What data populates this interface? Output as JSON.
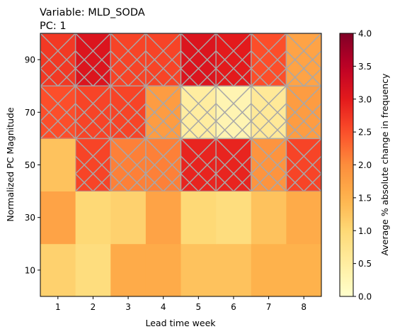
{
  "chart_data": {
    "type": "heatmap",
    "title_lines": [
      "Variable: MLD_SODA",
      "PC: 1"
    ],
    "xlabel": "Lead time week",
    "ylabel": "Normalized PC Magnitude",
    "x_categories": [
      "1",
      "2",
      "3",
      "4",
      "5",
      "6",
      "7",
      "8"
    ],
    "y_categories": [
      "10",
      "30",
      "50",
      "70",
      "90"
    ],
    "colorbar": {
      "label": "Average % absolute change in frequency",
      "colormap": "YlOrRd",
      "min": 0.0,
      "max": 4.0,
      "ticks": [
        "0.0",
        "0.5",
        "1.0",
        "1.5",
        "2.0",
        "2.5",
        "3.0",
        "3.5",
        "4.0"
      ]
    },
    "rows": [
      {
        "y": "10",
        "values": [
          1.1,
          0.9,
          1.6,
          1.6,
          1.3,
          1.3,
          1.5,
          1.5
        ],
        "hatched": [
          false,
          false,
          false,
          false,
          false,
          false,
          false,
          false
        ]
      },
      {
        "y": "30",
        "values": [
          1.7,
          1.0,
          1.1,
          1.7,
          1.0,
          0.9,
          1.3,
          1.6
        ],
        "hatched": [
          false,
          false,
          false,
          false,
          false,
          false,
          false,
          false
        ]
      },
      {
        "y": "50",
        "values": [
          1.3,
          2.6,
          2.1,
          2.1,
          2.9,
          2.9,
          1.9,
          2.6
        ],
        "hatched": [
          false,
          true,
          true,
          true,
          true,
          true,
          true,
          true
        ]
      },
      {
        "y": "70",
        "values": [
          2.5,
          2.6,
          2.6,
          1.8,
          0.5,
          0.3,
          0.6,
          1.8
        ],
        "hatched": [
          true,
          true,
          true,
          true,
          true,
          true,
          true,
          true
        ]
      },
      {
        "y": "90",
        "values": [
          2.7,
          3.1,
          2.6,
          2.6,
          3.1,
          3.0,
          2.5,
          1.7
        ],
        "hatched": [
          true,
          true,
          true,
          true,
          true,
          true,
          true,
          true
        ]
      }
    ],
    "hatch_color": "#a8a8a8"
  }
}
